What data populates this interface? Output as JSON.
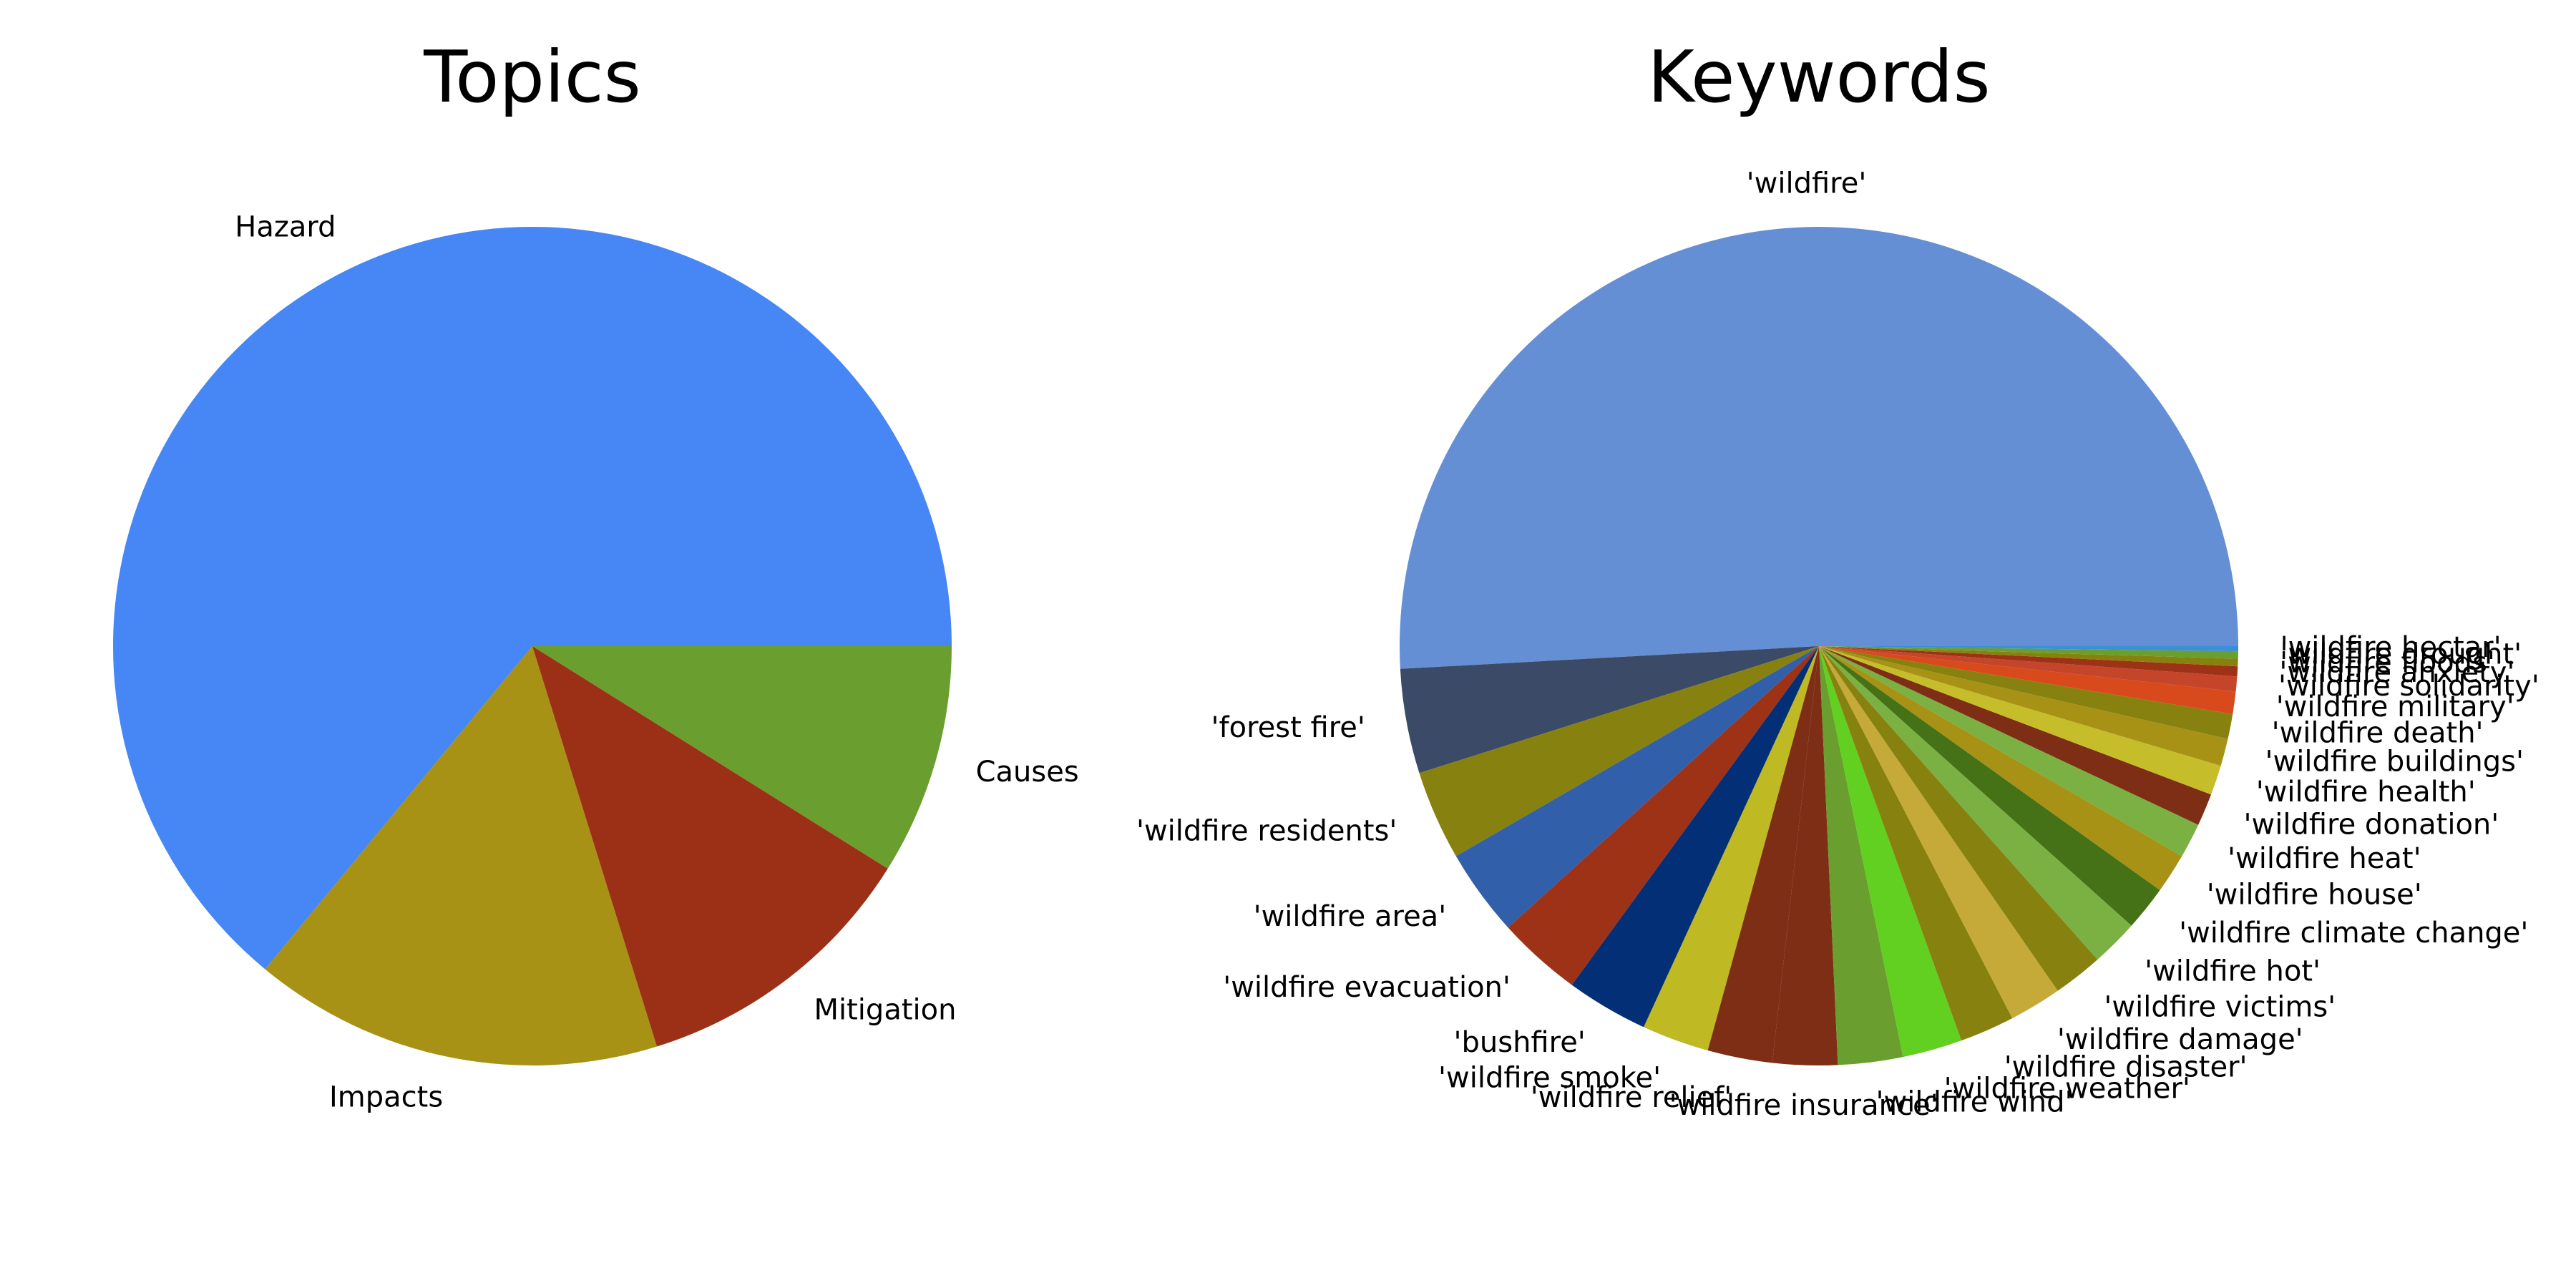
{
  "chart_data": [
    {
      "type": "pie",
      "title": "Topics",
      "start_angle": 0,
      "direction": "counterclockwise",
      "slices": [
        {
          "label": "Hazard",
          "value": 64.0,
          "color": "#4687f5"
        },
        {
          "label": "Impacts",
          "value": 15.8,
          "color": "#a89216"
        },
        {
          "label": "Mitigation",
          "value": 11.3,
          "color": "#9c3017"
        },
        {
          "label": "Causes",
          "value": 8.9,
          "color": "#6a9e2e"
        }
      ]
    },
    {
      "type": "pie",
      "title": "Keywords",
      "start_angle": 0,
      "direction": "counterclockwise",
      "slices": [
        {
          "label": "'wildfire'",
          "value": 53.0,
          "color": "#658fd4"
        },
        {
          "label": "'forest fire'",
          "value": 4.2,
          "color": "#3b4a67"
        },
        {
          "label": "'wildfire residents'",
          "value": 3.6,
          "color": "#87820f"
        },
        {
          "label": "'wildfire area'",
          "value": 3.5,
          "color": "#325fa9"
        },
        {
          "label": "'wildfire evacuation'",
          "value": 3.4,
          "color": "#9e3217"
        },
        {
          "label": "'bushfire'",
          "value": 3.3,
          "color": "#032f76"
        },
        {
          "label": "'wildfire smoke'",
          "value": 2.7,
          "color": "#bfb924"
        },
        {
          "label": "'wildfire relief'",
          "value": 2.6,
          "color": "#7f2e16"
        },
        {
          "label": "'wildfire insurance'",
          "value": 2.6,
          "color": "#7f2e16"
        },
        {
          "label": "'wildfire wind'",
          "value": 2.6,
          "color": "#6a9e2e"
        },
        {
          "label": "'wildfire weather'",
          "value": 2.4,
          "color": "#61d020"
        },
        {
          "label": "'wildfire disaster'",
          "value": 2.2,
          "color": "#87820f"
        },
        {
          "label": "'wildfire damage'",
          "value": 2.1,
          "color": "#c5aa3a"
        },
        {
          "label": "'wildfire victims'",
          "value": 2.0,
          "color": "#87820f"
        },
        {
          "label": "'wildfire hot'",
          "value": 1.9,
          "color": "#7bb042"
        },
        {
          "label": "'wildfire climate change'",
          "value": 1.8,
          "color": "#457216"
        },
        {
          "label": "'wildfire house'",
          "value": 1.6,
          "color": "#a89216"
        },
        {
          "label": "'wildfire heat'",
          "value": 1.4,
          "color": "#7bb042"
        },
        {
          "label": "'wildfire donation'",
          "value": 1.3,
          "color": "#7f2e16"
        },
        {
          "label": "'wildfire health'",
          "value": 1.2,
          "color": "#c5be2a"
        },
        {
          "label": "'wildfire buildings'",
          "value": 1.1,
          "color": "#a89216"
        },
        {
          "label": "'wildfire death'",
          "value": 1.0,
          "color": "#87820f"
        },
        {
          "label": "'wildfire military'",
          "value": 0.9,
          "color": "#d84a1c"
        },
        {
          "label": "'wildfire solidarity'",
          "value": 0.6,
          "color": "#c5452a"
        },
        {
          "label": "'wildfire anxiety'",
          "value": 0.4,
          "color": "#9e3217"
        },
        {
          "label": "'wildfire floods'",
          "value": 0.3,
          "color": "#87820f"
        },
        {
          "label": "'wildfire drought'",
          "value": 0.3,
          "color": "#6a9e2e"
        },
        {
          "label": "'wildfire hectar'",
          "value": 0.2,
          "color": "#3b8fd4"
        }
      ]
    }
  ]
}
